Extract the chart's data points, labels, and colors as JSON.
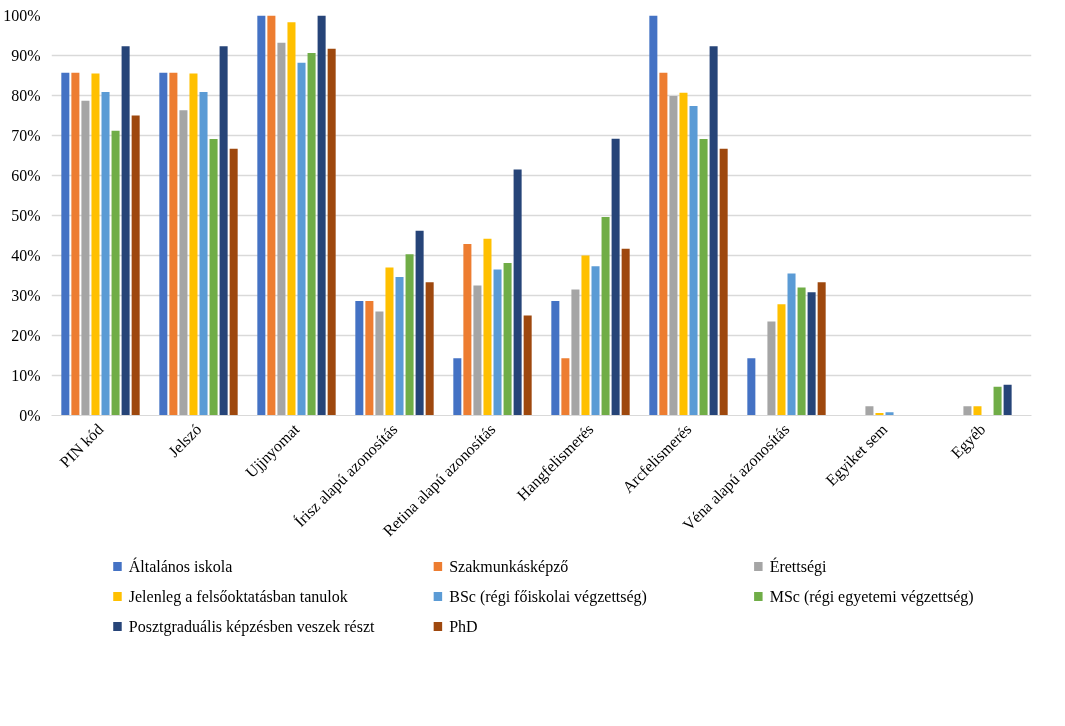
{
  "chart_data": {
    "type": "bar",
    "categories": [
      "PIN kód",
      "Jelszó",
      "Ujjnyomat",
      "Írisz alapú azonosítás",
      "Retina alapú azonosítás",
      "Hangfelismerés",
      "Arcfelismerés",
      "Véna alapú azonosítás",
      "Egyiket sem",
      "Egyéb"
    ],
    "series": [
      {
        "name": "Általános iskola",
        "color": "#4472c4",
        "values": [
          85.7,
          85.7,
          100,
          28.6,
          14.3,
          28.6,
          100,
          14.3,
          0,
          0
        ]
      },
      {
        "name": "Szakmunkásképző",
        "color": "#ed7d31",
        "values": [
          85.7,
          85.7,
          100,
          28.6,
          42.9,
          14.3,
          85.7,
          0,
          0,
          0
        ]
      },
      {
        "name": "Érettségi",
        "color": "#a5a5a5",
        "values": [
          78.7,
          76.3,
          93.2,
          26,
          32.5,
          31.5,
          79.9,
          23.5,
          2.3,
          2.3
        ]
      },
      {
        "name": "Jelenleg a felsőoktatásban tanulok",
        "color": "#ffc000",
        "values": [
          85.5,
          85.5,
          98.3,
          37,
          44.2,
          40,
          80.7,
          27.8,
          0.6,
          2.3
        ]
      },
      {
        "name": "BSc (régi főiskolai végzettség)",
        "color": "#5b9bd5",
        "values": [
          80.9,
          80.9,
          88.2,
          34.6,
          36.5,
          37.3,
          77.4,
          35.5,
          0.8,
          0
        ]
      },
      {
        "name": "MSc (régi egyetemi végzettség)",
        "color": "#70ad47",
        "values": [
          71.2,
          69.1,
          90.6,
          40.3,
          38.1,
          49.6,
          69.1,
          32,
          0,
          7.2
        ]
      },
      {
        "name": "Posztgraduális képzésben veszek részt",
        "color": "#264478",
        "values": [
          92.3,
          92.3,
          100,
          46.2,
          61.5,
          69.2,
          92.3,
          30.8,
          0,
          7.7
        ]
      },
      {
        "name": "PhD",
        "color": "#9e480e",
        "values": [
          75,
          66.7,
          91.7,
          33.3,
          25,
          41.7,
          66.7,
          33.3,
          0,
          0
        ]
      }
    ],
    "ylim": [
      0,
      100
    ],
    "yticks": [
      {
        "value": 0,
        "label": "0%"
      },
      {
        "value": 10,
        "label": "10%"
      },
      {
        "value": 20,
        "label": "20%"
      },
      {
        "value": 30,
        "label": "30%"
      },
      {
        "value": 40,
        "label": "40%"
      },
      {
        "value": 50,
        "label": "50%"
      },
      {
        "value": 60,
        "label": "60%"
      },
      {
        "value": 70,
        "label": "70%"
      },
      {
        "value": 80,
        "label": "80%"
      },
      {
        "value": 90,
        "label": "90%"
      },
      {
        "value": 100,
        "label": "100%"
      }
    ],
    "grid": "y",
    "legend": "bottom"
  }
}
